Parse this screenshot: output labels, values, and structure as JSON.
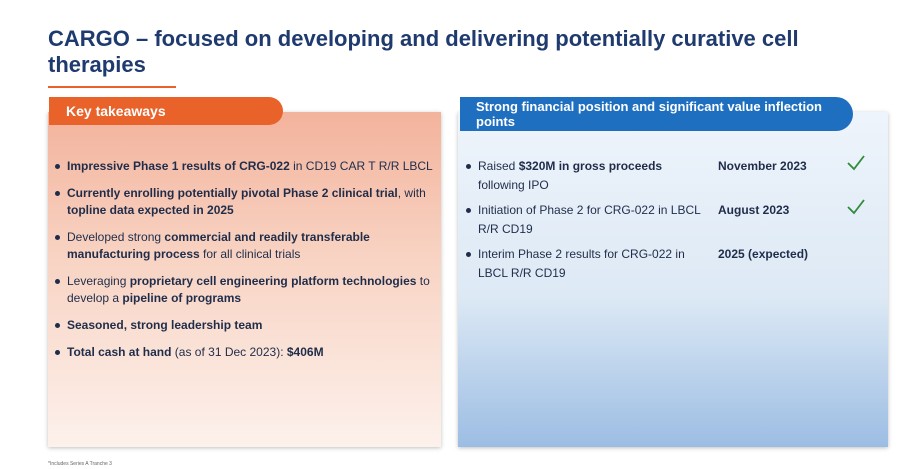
{
  "title": "CARGO – focused on developing and delivering potentially curative cell therapies",
  "left": {
    "header": "Key takeaways",
    "items": [
      [
        {
          "t": "Impressive Phase 1 results of CRG-022",
          "b": true
        },
        {
          "t": " in CD19 CAR T R/R LBCL",
          "b": false
        }
      ],
      [
        {
          "t": "Currently enrolling potentially pivotal Phase 2 clinical trial",
          "b": true
        },
        {
          "t": ", with ",
          "b": false
        },
        {
          "t": "topline data expected in 2025",
          "b": true
        }
      ],
      [
        {
          "t": "Developed strong ",
          "b": false
        },
        {
          "t": "commercial and readily transferable manufacturing process",
          "b": true
        },
        {
          "t": " for all clinical trials",
          "b": false
        }
      ],
      [
        {
          "t": "Leveraging ",
          "b": false
        },
        {
          "t": "proprietary cell engineering platform technologies",
          "b": true
        },
        {
          "t": " to develop a ",
          "b": false
        },
        {
          "t": "pipeline of programs",
          "b": true
        }
      ],
      [
        {
          "t": "Seasoned, strong leadership team",
          "b": true
        }
      ],
      [
        {
          "t": "Total cash at hand",
          "b": true
        },
        {
          "t": " (as of 31 Dec 2023): ",
          "b": false
        },
        {
          "t": "$406M",
          "b": true
        }
      ]
    ]
  },
  "right": {
    "header": "Strong financial position and significant value inflection points",
    "rows": [
      {
        "desc": [
          {
            "t": "Raised ",
            "b": false
          },
          {
            "t": "$320M in gross proceeds",
            "b": true
          },
          {
            "t": " following IPO",
            "b": false
          }
        ],
        "date": "November 2023",
        "check": true
      },
      {
        "desc": [
          {
            "t": "Initiation of Phase 2 for CRG-022 in LBCL R/R CD19",
            "b": false
          }
        ],
        "date": "August 2023",
        "check": true
      },
      {
        "desc": [
          {
            "t": "Interim Phase 2 results for CRG-022 in LBCL R/R CD19",
            "b": false
          }
        ],
        "date": "2025 (expected)",
        "check": false
      }
    ]
  },
  "footnote": "*Includes Series A Tranche 3",
  "colors": {
    "orange": "#e8622a",
    "blue": "#1f6fc0",
    "navy": "#1f3a6e",
    "check_green": "#2e8b3a"
  },
  "icons": {
    "check": "checkmark-icon"
  }
}
